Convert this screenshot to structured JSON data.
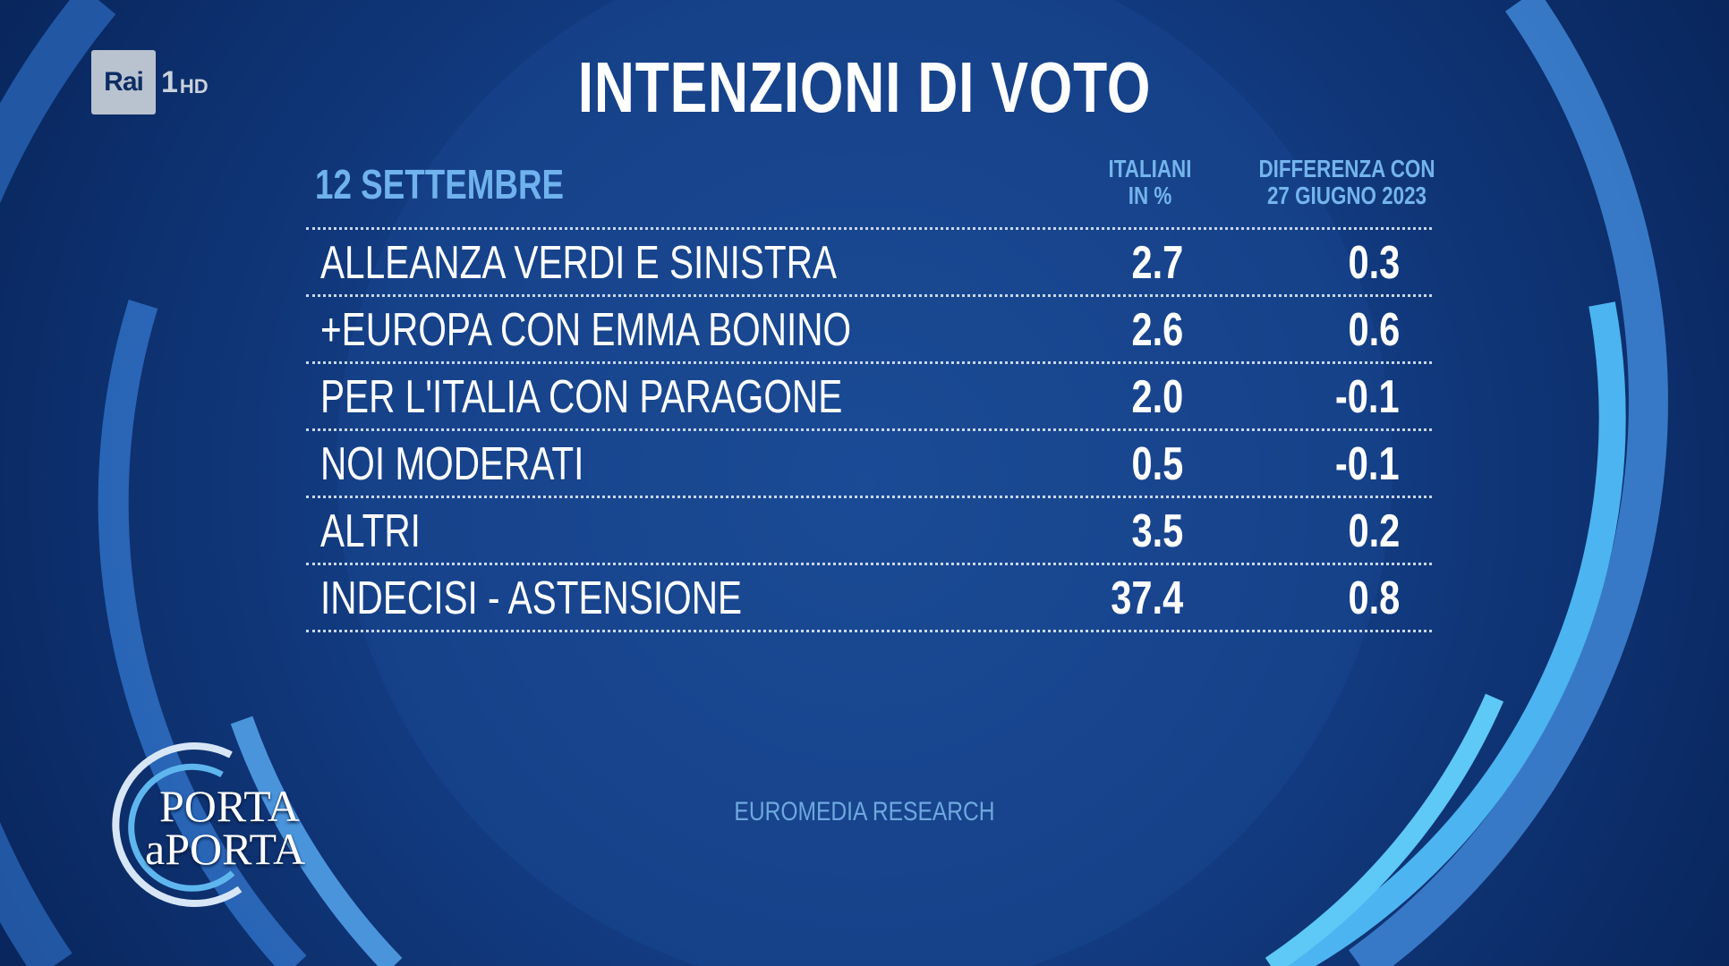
{
  "channel": {
    "brand": "Rai",
    "number": "1",
    "quality": "HD"
  },
  "show": {
    "line1": "PORTA",
    "line2": "aPORTA"
  },
  "source": "EUROMEDIA RESEARCH",
  "colors": {
    "background": "#0a2c68",
    "accent": "#6fb2ee",
    "ring_light": "#4fb3ef",
    "ring_mid": "#3a7fd4"
  },
  "chart_data": {
    "type": "table",
    "title": "INTENZIONI DI VOTO",
    "date": "12 SETTEMBRE",
    "columns": [
      "ITALIANI\nIN %",
      "DIFFERENZA CON\n27 GIUGNO 2023"
    ],
    "rows": [
      {
        "party": "ALLEANZA VERDI E SINISTRA",
        "value": "2.7",
        "diff": "0.3"
      },
      {
        "party": "+EUROPA CON EMMA BONINO",
        "value": "2.6",
        "diff": "0.6"
      },
      {
        "party": "PER L'ITALIA CON PARAGONE",
        "value": "2.0",
        "diff": "-0.1"
      },
      {
        "party": "NOI MODERATI",
        "value": "0.5",
        "diff": "-0.1"
      },
      {
        "party": "ALTRI",
        "value": "3.5",
        "diff": "0.2"
      },
      {
        "party": "INDECISI - ASTENSIONE",
        "value": "37.4",
        "diff": "0.8"
      }
    ]
  }
}
